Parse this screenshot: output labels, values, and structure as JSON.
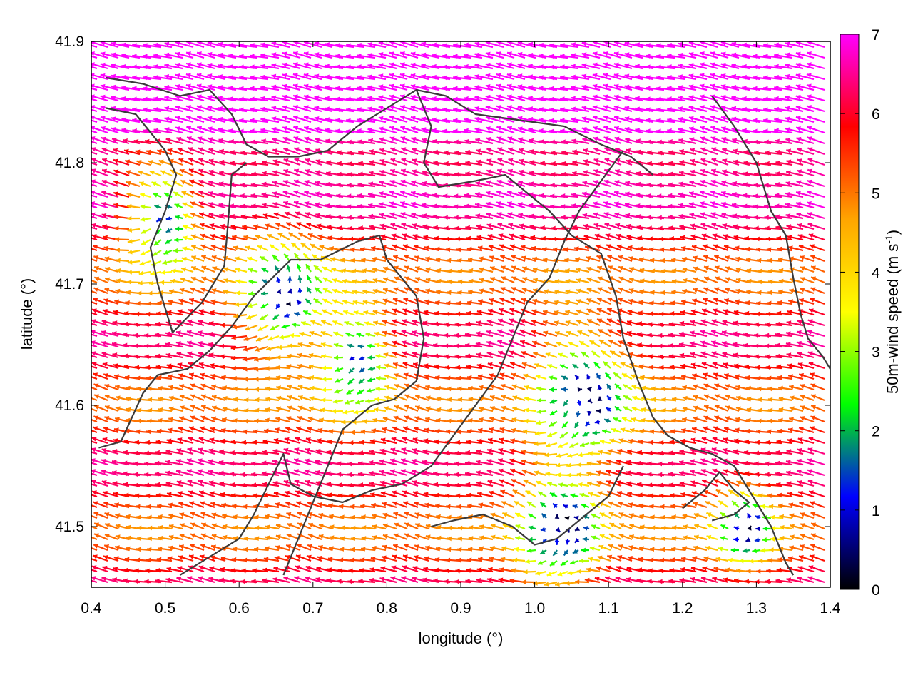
{
  "chart_data": {
    "type": "vector-field",
    "xlabel": "longitude (°)",
    "ylabel": "latitude (°)",
    "colorbar_label": "50m-wind speed (m s",
    "colorbar_label_sup": "-1",
    "colorbar_label_tail": ")",
    "xlim": [
      0.4,
      1.4
    ],
    "ylim": [
      41.45,
      41.9
    ],
    "xticks": [
      "0.4",
      "0.5",
      "0.6",
      "0.7",
      "0.8",
      "0.9",
      "1.0",
      "1.1",
      "1.2",
      "1.3",
      "1.4"
    ],
    "yticks": [
      "41.5",
      "41.6",
      "41.7",
      "41.8",
      "41.9"
    ],
    "colorbar_range": [
      0,
      7
    ],
    "colorbar_ticks": [
      "0",
      "1",
      "2",
      "3",
      "4",
      "5",
      "6",
      "7"
    ],
    "colormap": [
      "#000000",
      "#0000ff",
      "#00ff00",
      "#ffff00",
      "#ffa500",
      "#ff0000",
      "#ff00ff"
    ],
    "grid": false,
    "field_model": {
      "background": {
        "u": -4.8,
        "v": 1.0
      },
      "calm_centers": [
        {
          "lon": 0.49,
          "lat": 41.755,
          "radius": 0.05,
          "strength": 5.0
        },
        {
          "lon": 0.65,
          "lat": 41.69,
          "radius": 0.06,
          "strength": 5.5
        },
        {
          "lon": 0.75,
          "lat": 41.64,
          "radius": 0.05,
          "strength": 4.5
        },
        {
          "lon": 1.05,
          "lat": 41.61,
          "radius": 0.07,
          "strength": 5.5
        },
        {
          "lon": 1.02,
          "lat": 41.5,
          "radius": 0.06,
          "strength": 5.0
        },
        {
          "lon": 1.28,
          "lat": 41.5,
          "radius": 0.04,
          "strength": 3.5
        }
      ],
      "strong_north": {
        "lat_start": 41.75,
        "lat_full": 41.86,
        "extra_speed": 2.5
      }
    },
    "contours": [
      [
        [
          0.42,
          41.87
        ],
        [
          0.47,
          41.865
        ],
        [
          0.52,
          41.855
        ],
        [
          0.56,
          41.86
        ],
        [
          0.59,
          41.84
        ],
        [
          0.61,
          41.815
        ],
        [
          0.64,
          41.805
        ],
        [
          0.68,
          41.805
        ],
        [
          0.72,
          41.81
        ],
        [
          0.76,
          41.83
        ],
        [
          0.8,
          41.845
        ],
        [
          0.84,
          41.86
        ],
        [
          0.88,
          41.855
        ],
        [
          0.92,
          41.84
        ],
        [
          0.98,
          41.835
        ],
        [
          1.04,
          41.83
        ],
        [
          1.09,
          41.815
        ],
        [
          1.13,
          41.805
        ],
        [
          1.16,
          41.79
        ]
      ],
      [
        [
          0.42,
          41.845
        ],
        [
          0.46,
          41.84
        ],
        [
          0.5,
          41.81
        ],
        [
          0.515,
          41.79
        ],
        [
          0.5,
          41.76
        ],
        [
          0.48,
          41.73
        ],
        [
          0.49,
          41.7
        ],
        [
          0.51,
          41.66
        ],
        [
          0.55,
          41.685
        ],
        [
          0.58,
          41.715
        ],
        [
          0.585,
          41.75
        ],
        [
          0.59,
          41.79
        ],
        [
          0.61,
          41.8
        ]
      ],
      [
        [
          0.41,
          41.565
        ],
        [
          0.44,
          41.57
        ],
        [
          0.47,
          41.61
        ],
        [
          0.49,
          41.625
        ],
        [
          0.53,
          41.63
        ],
        [
          0.56,
          41.645
        ],
        [
          0.59,
          41.665
        ],
        [
          0.62,
          41.69
        ],
        [
          0.67,
          41.72
        ],
        [
          0.71,
          41.72
        ],
        [
          0.76,
          41.735
        ],
        [
          0.79,
          41.74
        ],
        [
          0.8,
          41.72
        ],
        [
          0.84,
          41.69
        ],
        [
          0.85,
          41.655
        ],
        [
          0.84,
          41.62
        ],
        [
          0.81,
          41.605
        ],
        [
          0.78,
          41.6
        ],
        [
          0.74,
          41.58
        ],
        [
          0.72,
          41.55
        ],
        [
          0.7,
          41.52
        ],
        [
          0.68,
          41.49
        ],
        [
          0.66,
          41.46
        ]
      ],
      [
        [
          0.52,
          41.46
        ],
        [
          0.56,
          41.475
        ],
        [
          0.6,
          41.49
        ],
        [
          0.62,
          41.51
        ],
        [
          0.64,
          41.535
        ],
        [
          0.66,
          41.56
        ],
        [
          0.67,
          41.535
        ],
        [
          0.7,
          41.525
        ],
        [
          0.74,
          41.52
        ],
        [
          0.78,
          41.53
        ],
        [
          0.82,
          41.535
        ],
        [
          0.86,
          41.55
        ],
        [
          0.89,
          41.575
        ],
        [
          0.92,
          41.6
        ],
        [
          0.95,
          41.625
        ],
        [
          0.97,
          41.655
        ],
        [
          0.99,
          41.685
        ],
        [
          1.02,
          41.705
        ],
        [
          1.04,
          41.735
        ],
        [
          1.06,
          41.76
        ],
        [
          1.09,
          41.785
        ],
        [
          1.12,
          41.81
        ]
      ],
      [
        [
          0.84,
          41.86
        ],
        [
          0.86,
          41.83
        ],
        [
          0.85,
          41.8
        ],
        [
          0.87,
          41.78
        ],
        [
          0.92,
          41.785
        ],
        [
          0.96,
          41.79
        ],
        [
          1.0,
          41.77
        ],
        [
          1.02,
          41.76
        ],
        [
          1.05,
          41.74
        ],
        [
          1.09,
          41.725
        ],
        [
          1.11,
          41.69
        ],
        [
          1.12,
          41.655
        ],
        [
          1.14,
          41.62
        ],
        [
          1.16,
          41.59
        ],
        [
          1.18,
          41.575
        ],
        [
          1.21,
          41.565
        ],
        [
          1.24,
          41.56
        ],
        [
          1.27,
          41.55
        ],
        [
          1.3,
          41.52
        ],
        [
          1.32,
          41.5
        ],
        [
          1.34,
          41.47
        ],
        [
          1.35,
          41.46
        ]
      ],
      [
        [
          1.24,
          41.855
        ],
        [
          1.27,
          41.83
        ],
        [
          1.3,
          41.8
        ],
        [
          1.32,
          41.76
        ],
        [
          1.34,
          41.74
        ],
        [
          1.35,
          41.705
        ],
        [
          1.36,
          41.675
        ],
        [
          1.37,
          41.655
        ],
        [
          1.39,
          41.64
        ],
        [
          1.4,
          41.63
        ]
      ],
      [
        [
          0.86,
          41.5
        ],
        [
          0.89,
          41.505
        ],
        [
          0.93,
          41.51
        ],
        [
          0.97,
          41.5
        ],
        [
          1.0,
          41.485
        ],
        [
          1.03,
          41.49
        ],
        [
          1.06,
          41.505
        ],
        [
          1.1,
          41.525
        ],
        [
          1.12,
          41.55
        ]
      ],
      [
        [
          1.2,
          41.515
        ],
        [
          1.23,
          41.53
        ],
        [
          1.25,
          41.545
        ],
        [
          1.27,
          41.53
        ],
        [
          1.29,
          41.52
        ],
        [
          1.27,
          41.51
        ],
        [
          1.24,
          41.505
        ]
      ]
    ]
  }
}
